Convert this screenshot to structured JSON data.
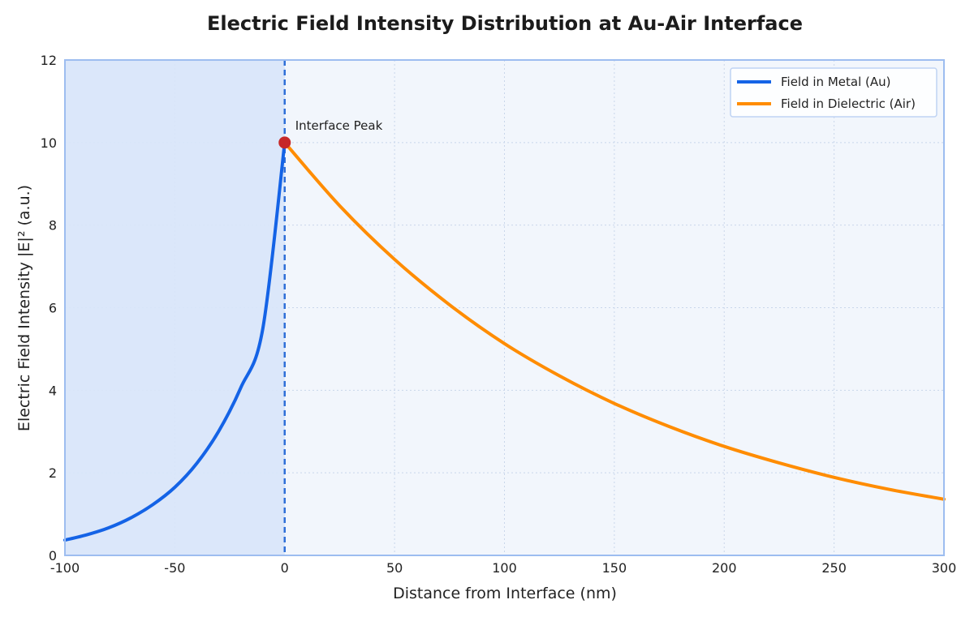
{
  "chart_data": {
    "type": "line",
    "title": "Electric Field Intensity Distribution at Au-Air Interface",
    "xlabel": "Distance from Interface (nm)",
    "ylabel": "Electric Field Intensity |E|² (a.u.)",
    "xlim": [
      -100,
      300
    ],
    "ylim": [
      0,
      12
    ],
    "xticks": [
      "-100",
      "-50",
      "0",
      "50",
      "100",
      "150",
      "200",
      "250",
      "300"
    ],
    "yticks": [
      "0",
      "2",
      "4",
      "6",
      "8",
      "10",
      "12"
    ],
    "grid": true,
    "legend_position": "top-right",
    "shaded_region": {
      "from": -100,
      "to": 0,
      "color": "#d8e5fa"
    },
    "interface_line": {
      "x": 0,
      "style": "dashed",
      "color": "#2f6fd8"
    },
    "series": [
      {
        "name": "Field in Metal (Au)",
        "color": "#1463e6",
        "x": [
          -100,
          -90,
          -80,
          -70,
          -60,
          -50,
          -40,
          -30,
          -20,
          -10,
          0
        ],
        "y": [
          0.37,
          0.5,
          0.67,
          0.91,
          1.23,
          1.65,
          2.23,
          3.01,
          4.06,
          5.48,
          10.0
        ]
      },
      {
        "name": "Field in Dielectric (Air)",
        "color": "#ff8c00",
        "x": [
          0,
          25,
          50,
          75,
          100,
          125,
          150,
          175,
          200,
          225,
          250,
          275,
          300
        ],
        "y": [
          10.0,
          8.47,
          7.17,
          6.07,
          5.13,
          4.35,
          3.68,
          3.12,
          2.64,
          2.24,
          1.89,
          1.6,
          1.36
        ]
      }
    ],
    "annotation": {
      "text": "Interface Peak",
      "x": 0,
      "y": 10,
      "marker_color": "#c62828"
    }
  }
}
